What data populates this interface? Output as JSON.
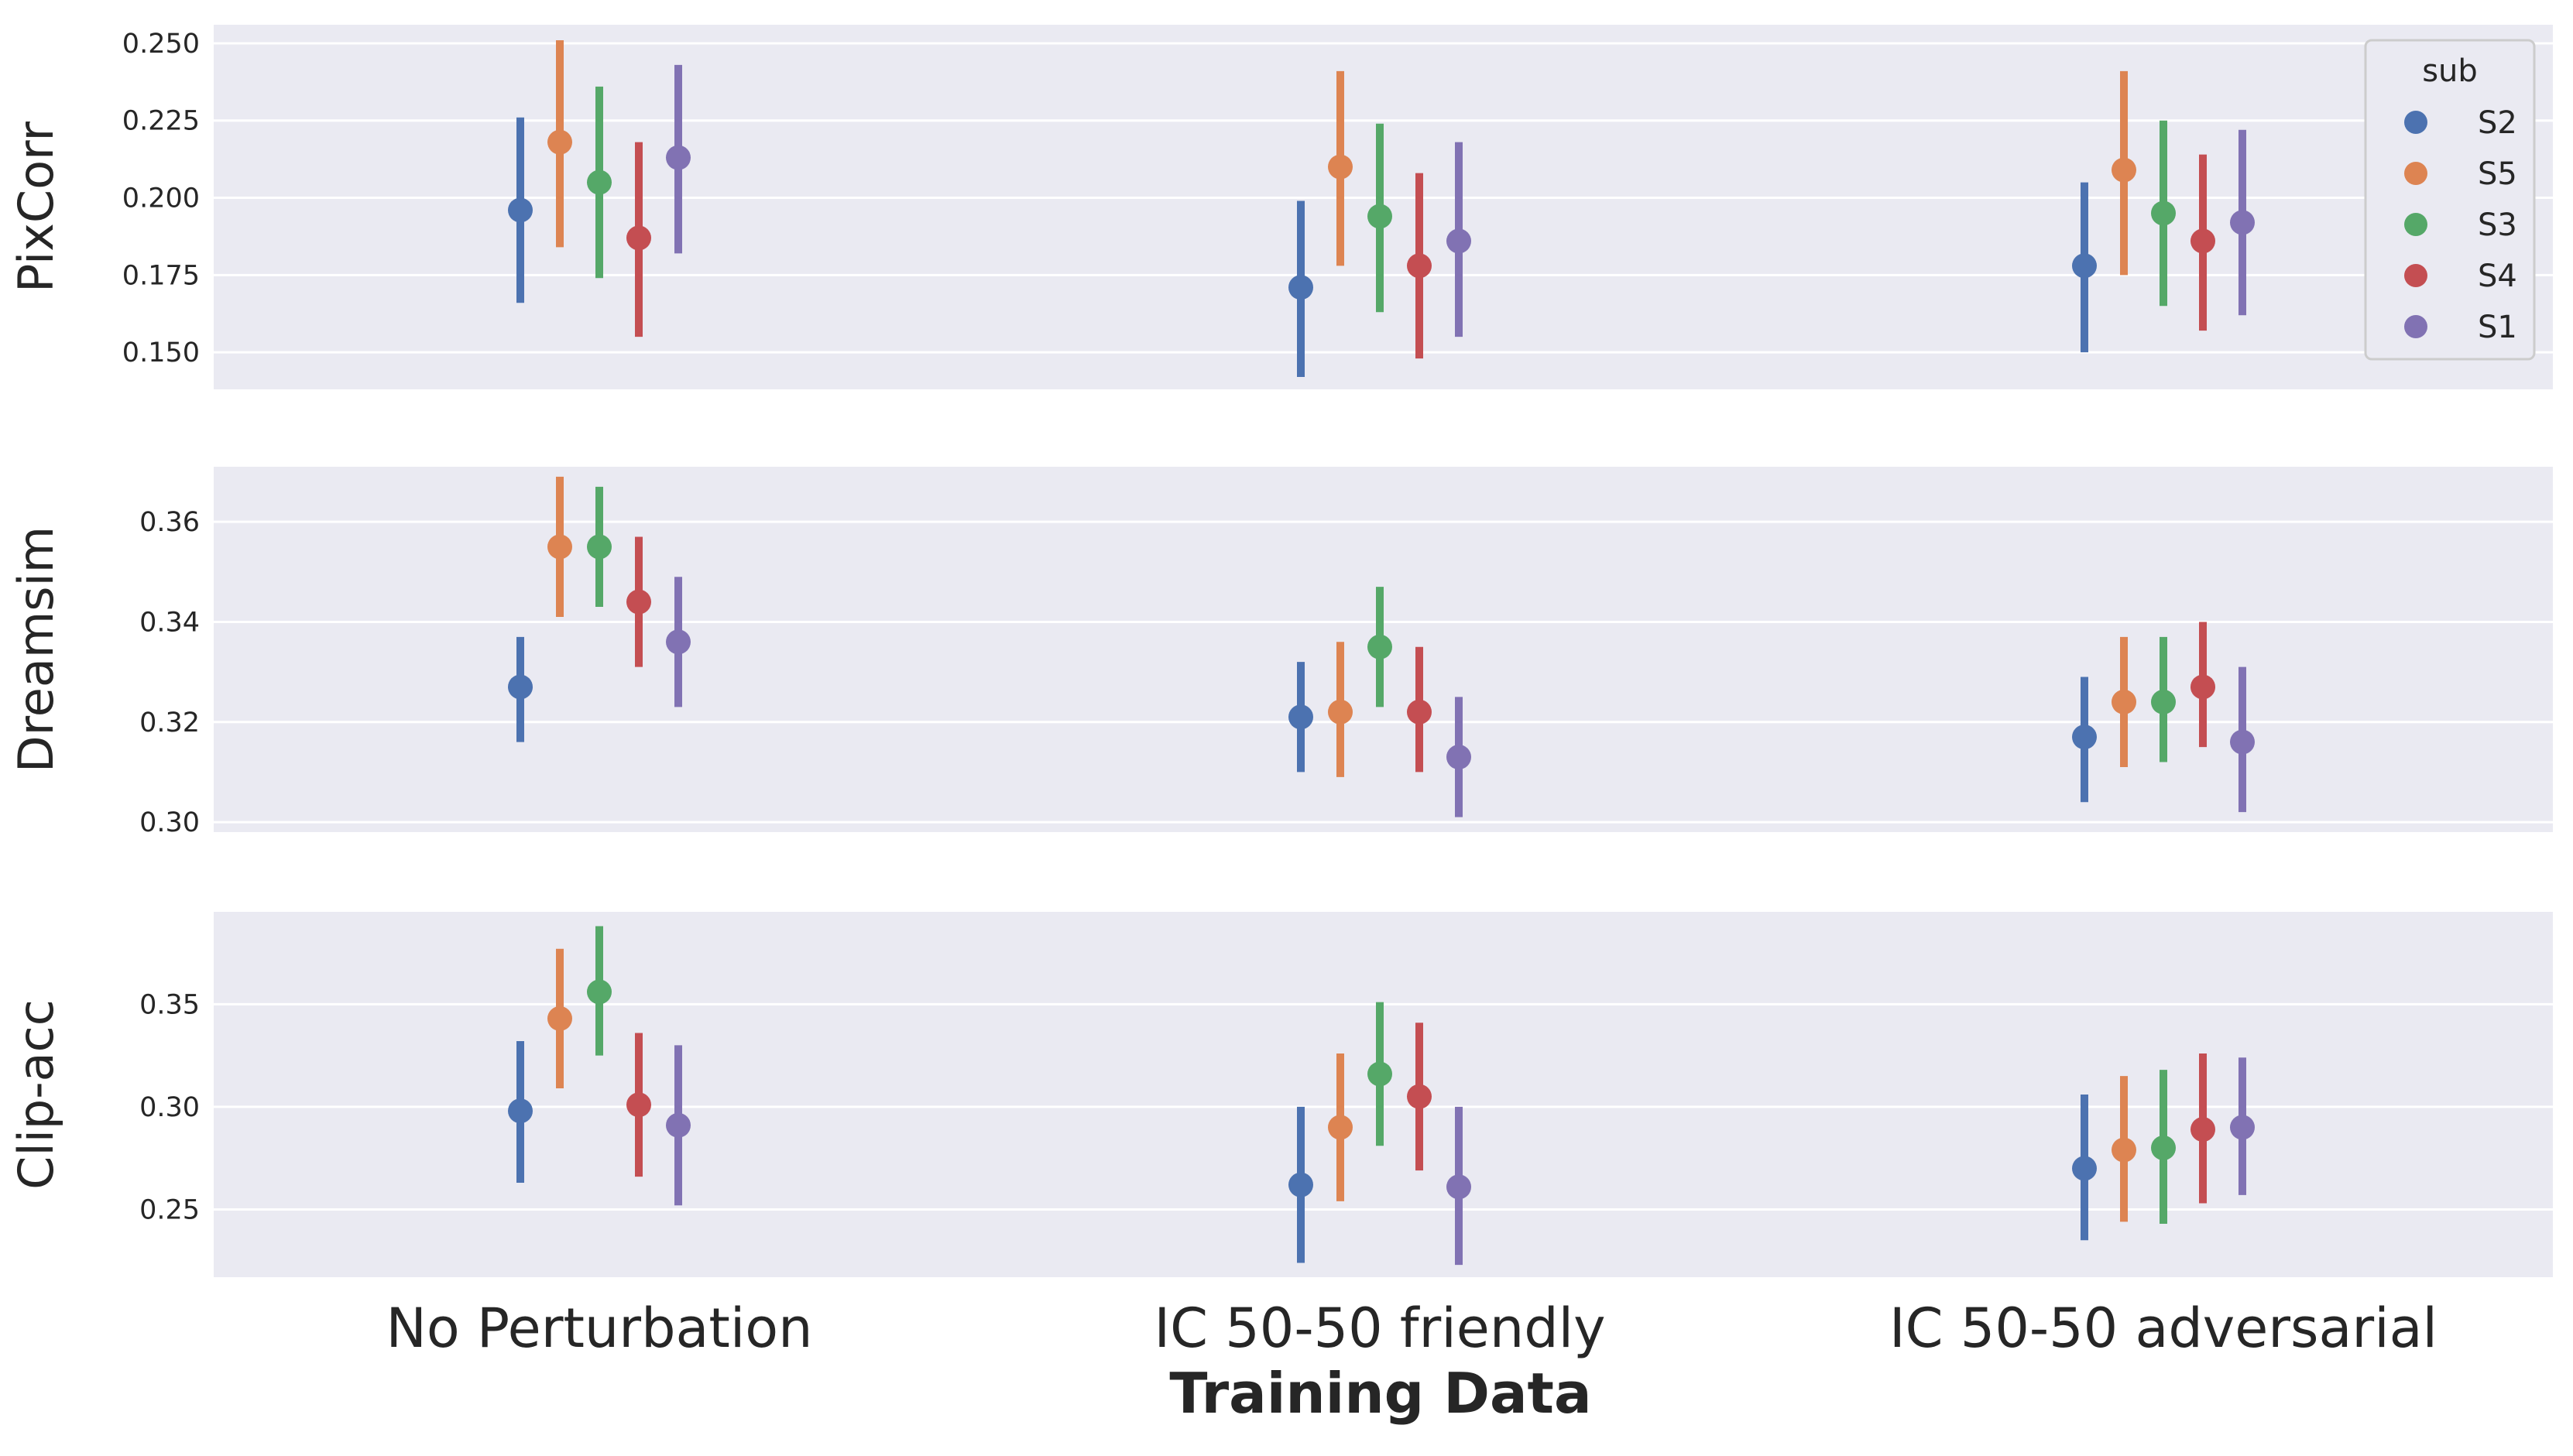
{
  "chart_data": {
    "type": "pointplot",
    "xlabel": "Training Data",
    "categories": [
      "No Perturbation",
      "IC 50-50 friendly",
      "IC 50-50 adversarial"
    ],
    "legend": {
      "title": "sub",
      "placement": "top-right of first panel",
      "entries": [
        "S2",
        "S5",
        "S3",
        "S4",
        "S1"
      ]
    },
    "colors": {
      "S2": "#4c72b0",
      "S5": "#dd8452",
      "S3": "#55a868",
      "S4": "#c44e52",
      "S1": "#8172b3"
    },
    "grid": true,
    "panels": [
      {
        "ylabel": "PixCorr",
        "ylim": [
          0.138,
          0.256
        ],
        "yticks": [
          0.15,
          0.175,
          0.2,
          0.225,
          0.25
        ],
        "ytick_labels": [
          "0.150",
          "0.175",
          "0.200",
          "0.225",
          "0.250"
        ],
        "series": [
          {
            "name": "S2",
            "values": [
              0.196,
              0.171,
              0.178
            ],
            "lower": [
              0.166,
              0.142,
              0.15
            ],
            "upper": [
              0.226,
              0.199,
              0.205
            ]
          },
          {
            "name": "S5",
            "values": [
              0.218,
              0.21,
              0.209
            ],
            "lower": [
              0.184,
              0.178,
              0.175
            ],
            "upper": [
              0.251,
              0.241,
              0.241
            ]
          },
          {
            "name": "S3",
            "values": [
              0.205,
              0.194,
              0.195
            ],
            "lower": [
              0.174,
              0.163,
              0.165
            ],
            "upper": [
              0.236,
              0.224,
              0.225
            ]
          },
          {
            "name": "S4",
            "values": [
              0.187,
              0.178,
              0.186
            ],
            "lower": [
              0.155,
              0.148,
              0.157
            ],
            "upper": [
              0.218,
              0.208,
              0.214
            ]
          },
          {
            "name": "S1",
            "values": [
              0.213,
              0.186,
              0.192
            ],
            "lower": [
              0.182,
              0.155,
              0.162
            ],
            "upper": [
              0.243,
              0.218,
              0.222
            ]
          }
        ]
      },
      {
        "ylabel": "Dreamsim",
        "ylim": [
          0.298,
          0.371
        ],
        "yticks": [
          0.3,
          0.32,
          0.34,
          0.36
        ],
        "ytick_labels": [
          "0.30",
          "0.32",
          "0.34",
          "0.36"
        ],
        "series": [
          {
            "name": "S2",
            "values": [
              0.327,
              0.321,
              0.317
            ],
            "lower": [
              0.316,
              0.31,
              0.304
            ],
            "upper": [
              0.337,
              0.332,
              0.329
            ]
          },
          {
            "name": "S5",
            "values": [
              0.355,
              0.322,
              0.324
            ],
            "lower": [
              0.341,
              0.309,
              0.311
            ],
            "upper": [
              0.369,
              0.336,
              0.337
            ]
          },
          {
            "name": "S3",
            "values": [
              0.355,
              0.335,
              0.324
            ],
            "lower": [
              0.343,
              0.323,
              0.312
            ],
            "upper": [
              0.367,
              0.347,
              0.337
            ]
          },
          {
            "name": "S4",
            "values": [
              0.344,
              0.322,
              0.327
            ],
            "lower": [
              0.331,
              0.31,
              0.315
            ],
            "upper": [
              0.357,
              0.335,
              0.34
            ]
          },
          {
            "name": "S1",
            "values": [
              0.336,
              0.313,
              0.316
            ],
            "lower": [
              0.323,
              0.301,
              0.302
            ],
            "upper": [
              0.349,
              0.325,
              0.331
            ]
          }
        ]
      },
      {
        "ylabel": "Clip-acc",
        "ylim": [
          0.217,
          0.395
        ],
        "yticks": [
          0.25,
          0.3,
          0.35
        ],
        "ytick_labels": [
          "0.25",
          "0.30",
          "0.35"
        ],
        "series": [
          {
            "name": "S2",
            "values": [
              0.298,
              0.262,
              0.27
            ],
            "lower": [
              0.263,
              0.224,
              0.235
            ],
            "upper": [
              0.332,
              0.3,
              0.306
            ]
          },
          {
            "name": "S5",
            "values": [
              0.343,
              0.29,
              0.279
            ],
            "lower": [
              0.309,
              0.254,
              0.244
            ],
            "upper": [
              0.377,
              0.326,
              0.315
            ]
          },
          {
            "name": "S3",
            "values": [
              0.356,
              0.316,
              0.28
            ],
            "lower": [
              0.325,
              0.281,
              0.243
            ],
            "upper": [
              0.388,
              0.351,
              0.318
            ]
          },
          {
            "name": "S4",
            "values": [
              0.301,
              0.305,
              0.289
            ],
            "lower": [
              0.266,
              0.269,
              0.253
            ],
            "upper": [
              0.336,
              0.341,
              0.326
            ]
          },
          {
            "name": "S1",
            "values": [
              0.291,
              0.261,
              0.29
            ],
            "lower": [
              0.252,
              0.223,
              0.257
            ],
            "upper": [
              0.33,
              0.3,
              0.324
            ]
          }
        ]
      }
    ]
  }
}
